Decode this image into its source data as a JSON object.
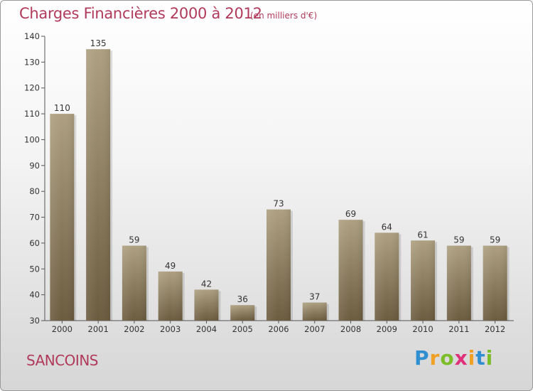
{
  "header": {
    "title": "Charges Financières 2000 à 2012",
    "unit": "(en milliers d'€)"
  },
  "footer": {
    "city": "SANCOINS",
    "logo": "Proxiti"
  },
  "colors": {
    "title": "#b03a5b",
    "bar_top": "#a89a7a",
    "bar_bottom": "#6e5e42"
  },
  "chart_data": {
    "type": "bar",
    "title": "Charges Financières 2000 à 2012",
    "subtitle": "(en milliers d'€)",
    "xlabel": "",
    "ylabel": "",
    "categories": [
      "2000",
      "2001",
      "2002",
      "2003",
      "2004",
      "2005",
      "2006",
      "2007",
      "2008",
      "2009",
      "2010",
      "2011",
      "2012"
    ],
    "values": [
      110,
      135,
      59,
      49,
      42,
      36,
      73,
      37,
      69,
      64,
      61,
      59,
      59
    ],
    "ylim": [
      30,
      140
    ],
    "yticks": [
      30,
      40,
      50,
      60,
      70,
      80,
      90,
      100,
      110,
      120,
      130,
      140
    ],
    "grid": false,
    "legend": "none"
  }
}
